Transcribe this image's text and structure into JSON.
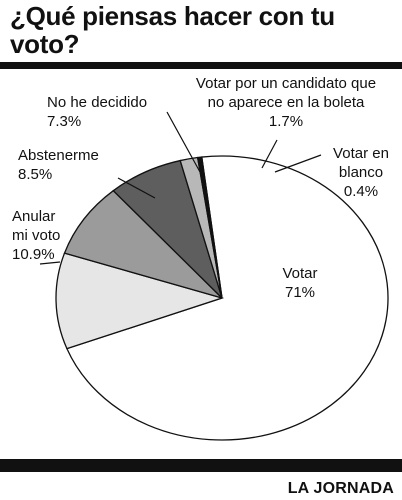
{
  "header": {
    "title": "¿Qué piensas hacer con tu voto?"
  },
  "footer": {
    "credit": "LA JORNADA"
  },
  "chart_data": {
    "type": "pie",
    "title": "¿Qué piensas hacer con tu voto?",
    "slices": [
      {
        "label_lines": [
          "Votar"
        ],
        "value_text": "71%",
        "value": 71,
        "color": "#ffffff"
      },
      {
        "label_lines": [
          "Anular",
          "mi voto"
        ],
        "value_text": "10.9%",
        "value": 10.9,
        "color": "#e6e6e6"
      },
      {
        "label_lines": [
          "Abstenerme"
        ],
        "value_text": "8.5%",
        "value": 8.5,
        "color": "#9b9b9b"
      },
      {
        "label_lines": [
          "No he decidido"
        ],
        "value_text": "7.3%",
        "value": 7.3,
        "color": "#5e5e5e"
      },
      {
        "label_lines": [
          "Votar por un candidato que",
          "no aparece en la boleta"
        ],
        "value_text": "1.7%",
        "value": 1.7,
        "color": "#b8b8b8"
      },
      {
        "label_lines": [
          "Votar en",
          "blanco"
        ],
        "value_text": "0.4%",
        "value": 0.4,
        "color": "#111111"
      }
    ]
  }
}
